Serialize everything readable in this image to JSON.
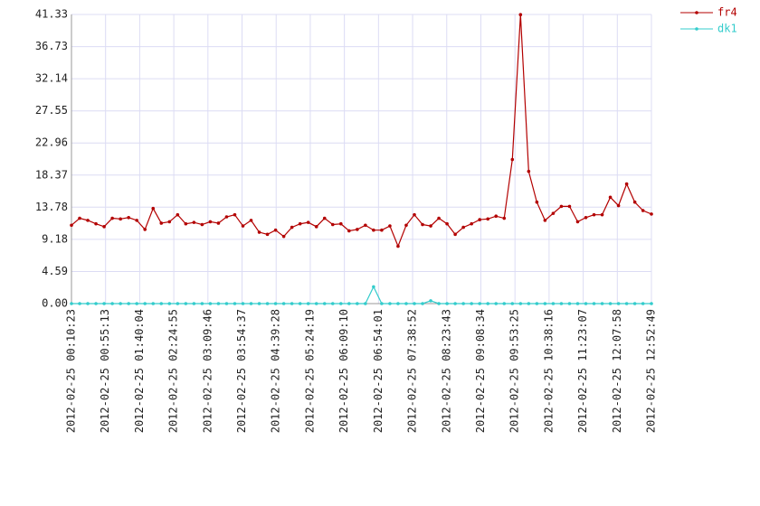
{
  "chart_data": {
    "type": "line",
    "x": [
      "2012-02-25 00:10:23",
      "2012-02-25 00:21:07",
      "2012-02-25 00:31:51",
      "2012-02-25 00:42:35",
      "2012-02-25 00:53:19",
      "2012-02-25 01:04:03",
      "2012-02-25 01:14:47",
      "2012-02-25 01:25:31",
      "2012-02-25 01:36:15",
      "2012-02-25 01:46:59",
      "2012-02-25 01:57:43",
      "2012-02-25 02:08:27",
      "2012-02-25 02:19:11",
      "2012-02-25 02:29:55",
      "2012-02-25 02:40:39",
      "2012-02-25 02:51:23",
      "2012-02-25 03:02:07",
      "2012-02-25 03:12:51",
      "2012-02-25 03:23:35",
      "2012-02-25 03:34:19",
      "2012-02-25 03:45:03",
      "2012-02-25 03:55:47",
      "2012-02-25 04:06:31",
      "2012-02-25 04:17:15",
      "2012-02-25 04:27:59",
      "2012-02-25 04:38:43",
      "2012-02-25 04:49:27",
      "2012-02-25 05:00:11",
      "2012-02-25 05:10:55",
      "2012-02-25 05:21:39",
      "2012-02-25 05:32:23",
      "2012-02-25 05:43:07",
      "2012-02-25 05:53:51",
      "2012-02-25 06:04:35",
      "2012-02-25 06:15:19",
      "2012-02-25 06:26:03",
      "2012-02-25 06:36:47",
      "2012-02-25 06:47:31",
      "2012-02-25 06:58:15",
      "2012-02-25 07:08:59",
      "2012-02-25 07:19:43",
      "2012-02-25 07:30:27",
      "2012-02-25 07:41:11",
      "2012-02-25 07:51:55",
      "2012-02-25 08:02:39",
      "2012-02-25 08:13:23",
      "2012-02-25 08:24:07",
      "2012-02-25 08:34:51",
      "2012-02-25 08:45:35",
      "2012-02-25 08:56:19",
      "2012-02-25 09:07:03",
      "2012-02-25 09:17:47",
      "2012-02-25 09:28:31",
      "2012-02-25 09:39:15",
      "2012-02-25 09:49:59",
      "2012-02-25 10:00:43",
      "2012-02-25 10:11:27",
      "2012-02-25 10:22:11",
      "2012-02-25 10:32:55",
      "2012-02-25 10:43:39",
      "2012-02-25 10:54:23",
      "2012-02-25 11:05:07",
      "2012-02-25 11:15:51",
      "2012-02-25 11:26:35",
      "2012-02-25 11:37:19",
      "2012-02-25 11:48:03",
      "2012-02-25 11:58:47",
      "2012-02-25 12:09:31",
      "2012-02-25 12:20:15",
      "2012-02-25 12:30:59",
      "2012-02-25 12:41:43",
      "2012-02-25 12:52:49"
    ],
    "series": [
      {
        "name": "fr4",
        "color": "#b30000",
        "values": [
          11.2,
          12.2,
          11.9,
          11.4,
          11.0,
          12.2,
          12.1,
          12.3,
          11.9,
          10.6,
          13.6,
          11.5,
          11.7,
          12.7,
          11.4,
          11.6,
          11.3,
          11.7,
          11.5,
          12.4,
          12.7,
          11.1,
          11.9,
          10.2,
          9.9,
          10.5,
          9.6,
          10.9,
          11.4,
          11.6,
          11.0,
          12.2,
          11.3,
          11.4,
          10.4,
          10.6,
          11.2,
          10.5,
          10.5,
          11.1,
          8.2,
          11.2,
          12.7,
          11.3,
          11.1,
          12.2,
          11.4,
          9.9,
          10.9,
          11.4,
          12.0,
          12.1,
          12.5,
          12.2,
          20.6,
          41.3,
          18.9,
          14.5,
          11.9,
          12.9,
          13.9,
          13.9,
          11.7,
          12.3,
          12.7,
          12.7,
          15.2,
          14.0,
          17.1,
          14.5,
          13.3,
          12.8
        ]
      },
      {
        "name": "dk1",
        "color": "#33cccc",
        "values": [
          0,
          0,
          0,
          0,
          0,
          0,
          0,
          0,
          0,
          0,
          0,
          0,
          0,
          0,
          0,
          0,
          0,
          0,
          0,
          0,
          0,
          0,
          0,
          0,
          0,
          0,
          0,
          0,
          0,
          0,
          0,
          0,
          0,
          0,
          0,
          0,
          0,
          2.4,
          0,
          0,
          0,
          0,
          0,
          0,
          0.4,
          0,
          0,
          0,
          0,
          0,
          0,
          0,
          0,
          0,
          0,
          0,
          0,
          0,
          0,
          0,
          0,
          0,
          0,
          0,
          0,
          0,
          0,
          0,
          0,
          0,
          0,
          0
        ]
      }
    ],
    "xlim": [
      "2012-02-25 00:10:23",
      "2012-02-25 12:52:49"
    ],
    "xticks": [
      "2012-02-25 00:10:23",
      "2012-02-25 00:55:13",
      "2012-02-25 01:40:04",
      "2012-02-25 02:24:55",
      "2012-02-25 03:09:46",
      "2012-02-25 03:54:37",
      "2012-02-25 04:39:28",
      "2012-02-25 05:24:19",
      "2012-02-25 06:09:10",
      "2012-02-25 06:54:01",
      "2012-02-25 07:38:52",
      "2012-02-25 08:23:43",
      "2012-02-25 09:08:34",
      "2012-02-25 09:53:25",
      "2012-02-25 10:38:16",
      "2012-02-25 11:23:07",
      "2012-02-25 12:07:58",
      "2012-02-25 12:52:49"
    ],
    "ylim": [
      0,
      41.33
    ],
    "yticks": [
      {
        "value": 0,
        "label": "0.00"
      },
      4.59,
      9.18,
      13.78,
      18.37,
      22.96,
      27.55,
      32.14,
      36.73,
      41.33
    ],
    "grid": true,
    "legend": "top-right"
  }
}
